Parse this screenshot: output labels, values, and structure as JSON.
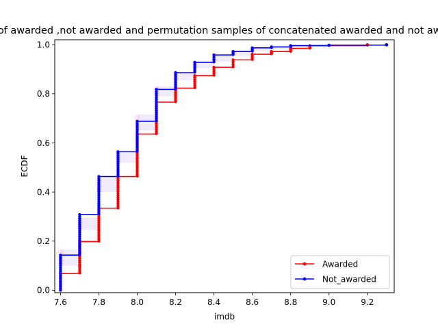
{
  "chart_data": {
    "type": "line",
    "title": "ECDF of awarded ,not awarded and permutation samples of concatenated awarded and not awarded",
    "xlabel": "imdb",
    "ylabel": "ECDF",
    "xlim": [
      7.57,
      9.34
    ],
    "ylim": [
      -0.01,
      1.02
    ],
    "xticks": [
      "7.6",
      "7.8",
      "8.0",
      "8.2",
      "8.4",
      "8.6",
      "8.8",
      "9.0",
      "9.2"
    ],
    "yticks": [
      "0.0",
      "0.2",
      "0.4",
      "0.6",
      "0.8",
      "1.0"
    ],
    "legend_position": "lower-right",
    "grid": false,
    "series": [
      {
        "name": "Awarded",
        "color": "#ff0000",
        "x": [
          7.6,
          7.7,
          7.8,
          7.9,
          8.0,
          8.1,
          8.2,
          8.3,
          8.4,
          8.5,
          8.6,
          8.7,
          8.8,
          8.9,
          9.2
        ],
        "ylow": [
          0.0,
          0.07,
          0.2,
          0.335,
          0.465,
          0.638,
          0.768,
          0.825,
          0.876,
          0.91,
          0.94,
          0.963,
          0.973,
          0.986,
          0.998
        ],
        "yhigh": [
          0.068,
          0.198,
          0.334,
          0.463,
          0.636,
          0.766,
          0.823,
          0.874,
          0.908,
          0.938,
          0.961,
          0.972,
          0.985,
          0.996,
          1.0
        ]
      },
      {
        "name": "Not_awarded",
        "color": "#0000ff",
        "x": [
          7.6,
          7.7,
          7.8,
          7.9,
          8.0,
          8.1,
          8.2,
          8.3,
          8.4,
          8.5,
          8.6,
          8.7,
          8.8,
          9.0,
          9.3
        ],
        "ylow": [
          0.0,
          0.145,
          0.31,
          0.465,
          0.566,
          0.69,
          0.82,
          0.888,
          0.93,
          0.96,
          0.974,
          0.988,
          0.992,
          0.997,
          0.999
        ],
        "yhigh": [
          0.143,
          0.308,
          0.463,
          0.564,
          0.688,
          0.818,
          0.886,
          0.928,
          0.958,
          0.972,
          0.987,
          0.991,
          0.996,
          0.998,
          1.0
        ]
      },
      {
        "name": "",
        "color": "#ff69b4",
        "role": "permutation-samples",
        "x": [
          7.6,
          7.7,
          7.8,
          7.9,
          8.0,
          8.1,
          8.2,
          8.3,
          8.4,
          8.5,
          8.6,
          8.7,
          8.8,
          8.9,
          9.0,
          9.2,
          9.3
        ],
        "ylevels_low": [
          0.1,
          0.245,
          0.4,
          0.52,
          0.65,
          0.79,
          0.855,
          0.905,
          0.93,
          0.955,
          0.975,
          0.983,
          0.99,
          0.995,
          0.998,
          0.999,
          1.0
        ],
        "ylevels_high": [
          0.165,
          0.295,
          0.455,
          0.565,
          0.715,
          0.83,
          0.885,
          0.93,
          0.955,
          0.97,
          0.985,
          0.99,
          0.995,
          0.998,
          0.999,
          1.0,
          1.0
        ]
      }
    ]
  }
}
